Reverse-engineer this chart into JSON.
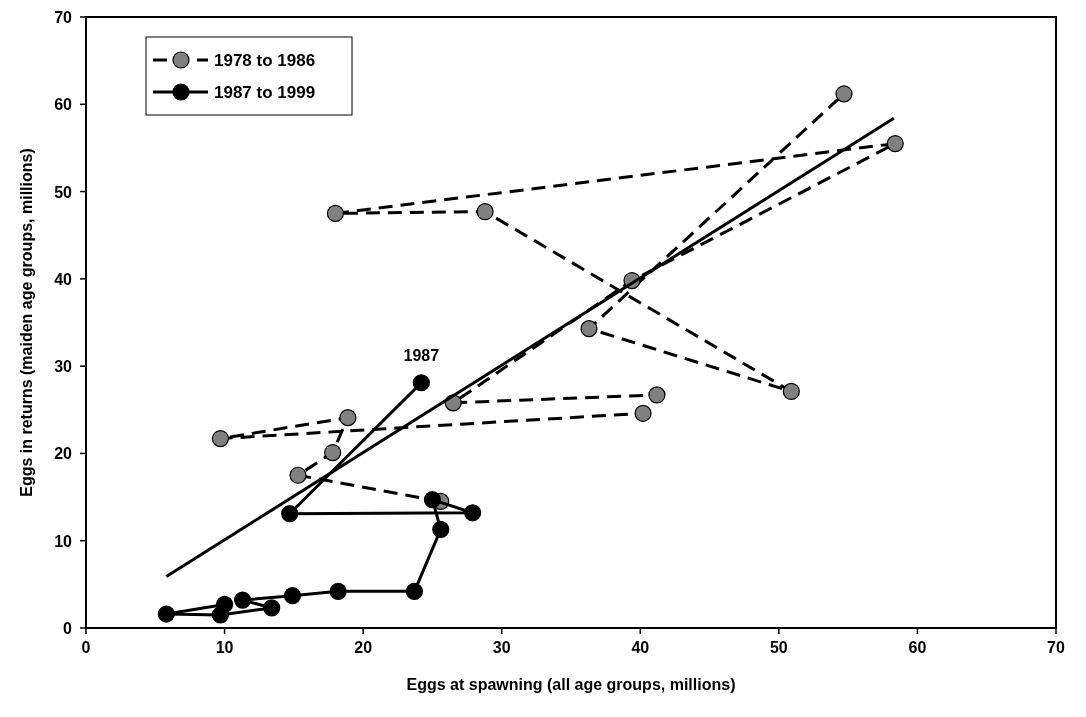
{
  "chart_data": {
    "type": "line",
    "xlabel": "Eggs at spawning (all age groups, millions)",
    "ylabel": "Eggs in returns (maiden age groups, millions)",
    "xlim": [
      0,
      70
    ],
    "ylim": [
      0,
      70
    ],
    "xticks": [
      0,
      10,
      20,
      30,
      40,
      50,
      60,
      70
    ],
    "yticks": [
      0,
      10,
      20,
      30,
      40,
      50,
      60,
      70
    ],
    "grid": false,
    "legend": "top left",
    "marker": "circle",
    "annotations": [
      {
        "text": "1987",
        "x": 24.2,
        "y": 28.1
      }
    ],
    "series": [
      {
        "name": "1978 to 1986",
        "color": "#808080",
        "line_style": "dashed",
        "x": [
          25.6,
          15.3,
          17.8,
          18.9,
          9.7,
          40.2,
          41.2,
          26.5,
          39.4,
          58.4,
          18,
          28.8,
          50.9,
          36.3,
          54.7
        ],
        "values": [
          14.5,
          17.5,
          20.1,
          24.1,
          21.7,
          24.6,
          26.7,
          25.8,
          39.8,
          55.5,
          47.5,
          47.7,
          27.1,
          34.3,
          61.2
        ]
      },
      {
        "name": "1987 to 1999",
        "color": "#000000",
        "line_style": "solid",
        "x": [
          24.2,
          14.7,
          27.9,
          25,
          25.6,
          23.7,
          18.2,
          14.9,
          11.3,
          13.4,
          9.7,
          5.8,
          10
        ],
        "values": [
          28.1,
          13.1,
          13.2,
          14.7,
          11.3,
          4.2,
          4.2,
          3.7,
          3.2,
          2.3,
          1.5,
          1.6,
          2.7
        ]
      },
      {
        "type": "line",
        "color": "#000000",
        "marker": "none",
        "line_style": "solid",
        "x": [
          5.8,
          58.3
        ],
        "values": [
          5.9,
          58.4
        ]
      }
    ]
  }
}
